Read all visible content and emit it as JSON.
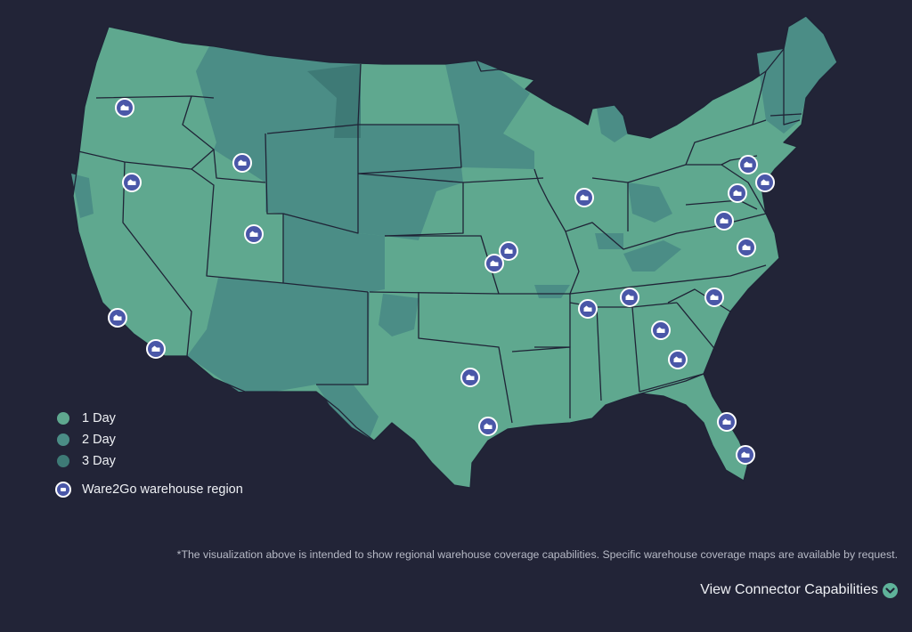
{
  "legend": {
    "items": [
      {
        "label": "1 Day",
        "color": "#5fa88f"
      },
      {
        "label": "2 Day",
        "color": "#4b8d86"
      },
      {
        "label": "3 Day",
        "color": "#3e7a76"
      }
    ],
    "warehouse_label": "Ware2Go warehouse region"
  },
  "colors": {
    "background": "#222437",
    "one_day": "#5fa88f",
    "two_day": "#4b8d86",
    "three_day": "#3e7a76",
    "border": "#1f2336",
    "marker": "#4a57a8"
  },
  "marker_icon": "warehouse-icon",
  "footnote": "*The visualization above is intended to show regional warehouse coverage capabilities. Specific warehouse coverage maps are available by request.",
  "cta": {
    "label": "View Connector Capabilities",
    "icon": "chevron-down-icon"
  }
}
